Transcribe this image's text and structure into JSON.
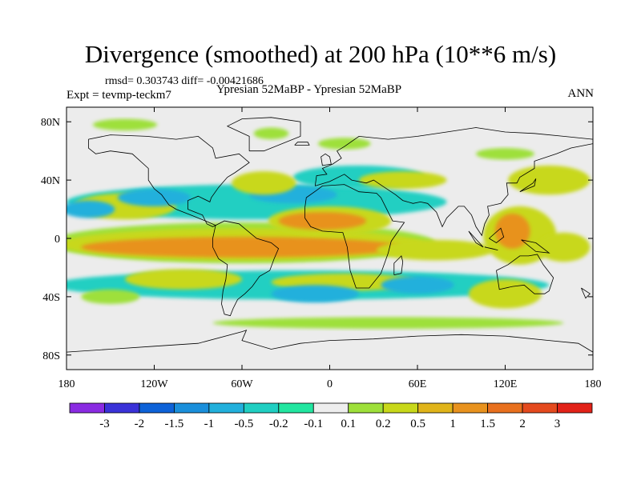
{
  "chart_data": {
    "type": "heatmap",
    "title": "Divergence (smoothed) at 200 hPa (10**6 m/s)",
    "stats": "rmsd= 0.303743 diff= -0.00421686",
    "experiment": "Expt = tevmp-teckm7",
    "case": "Ypresian  52MaBP - Ypresian  52MaBP",
    "season": "ANN",
    "x_ticks": [
      {
        "lon": -180,
        "label": "180"
      },
      {
        "lon": -120,
        "label": "120W"
      },
      {
        "lon": -60,
        "label": "60W"
      },
      {
        "lon": 0,
        "label": "0"
      },
      {
        "lon": 60,
        "label": "60E"
      },
      {
        "lon": 120,
        "label": "120E"
      },
      {
        "lon": 180,
        "label": "180"
      }
    ],
    "y_ticks": [
      {
        "lat": 80,
        "label": "80N"
      },
      {
        "lat": 40,
        "label": "40N"
      },
      {
        "lat": 0,
        "label": "0"
      },
      {
        "lat": -40,
        "label": "40S"
      },
      {
        "lat": -80,
        "label": "80S"
      }
    ],
    "xlim": [
      -180,
      180
    ],
    "ylim": [
      -90,
      90
    ],
    "colorbar": {
      "colors": [
        "#8a2be2",
        "#3a32d8",
        "#0d62d8",
        "#1a8fdb",
        "#22b0dc",
        "#20cfc2",
        "#22e6a0",
        "#eeeeee",
        "#9ee03a",
        "#c8d81a",
        "#e0b41a",
        "#e8921e",
        "#e8701e",
        "#e44a1e",
        "#e22218"
      ],
      "tick_labels": [
        "-3",
        "-2",
        "-1.5",
        "-1",
        "-0.5",
        "-0.2",
        "-0.1",
        "0.1",
        "0.2",
        "0.5",
        "1",
        "1.5",
        "2",
        "3"
      ]
    },
    "regions": [
      {
        "name": "tropical-orange-band",
        "lon": -60,
        "lat": -6,
        "rlon": 110,
        "rlat": 7,
        "level": 1.5
      },
      {
        "name": "tropical-yellow-band",
        "lon": -60,
        "lat": -4,
        "rlon": 125,
        "rlat": 11,
        "level": 0.5
      },
      {
        "name": "tropical-green-band",
        "lon": -60,
        "lat": -3,
        "rlon": 132,
        "rlat": 14,
        "level": 0.2
      },
      {
        "name": "africa-orange",
        "lon": -5,
        "lat": 12,
        "rlon": 30,
        "rlat": 6,
        "level": 1.5
      },
      {
        "name": "africa-yellow",
        "lon": 0,
        "lat": 12,
        "rlon": 42,
        "rlat": 10,
        "level": 0.5
      },
      {
        "name": "indian-ocean-yellow",
        "lon": 72,
        "lat": -8,
        "rlon": 40,
        "rlat": 7,
        "level": 0.5
      },
      {
        "name": "maritime-orange",
        "lon": 125,
        "lat": 5,
        "rlon": 12,
        "rlat": 12,
        "level": 1.5
      },
      {
        "name": "maritime-yellow",
        "lon": 130,
        "lat": 2,
        "rlon": 25,
        "rlat": 20,
        "level": 0.5
      },
      {
        "name": "east-pacific-yellow",
        "lon": 160,
        "lat": -6,
        "rlon": 18,
        "rlat": 10,
        "level": 0.5
      },
      {
        "name": "west-pacific-band",
        "lon": -140,
        "lat": 22,
        "rlon": 35,
        "rlat": 9,
        "level": 0.5
      },
      {
        "name": "north-atlantic-yellow",
        "lon": -45,
        "lat": 38,
        "rlon": 22,
        "rlat": 8,
        "level": 0.5
      },
      {
        "name": "north-africa-yellow",
        "lon": 50,
        "lat": 40,
        "rlon": 30,
        "rlat": 6,
        "level": 0.5
      },
      {
        "name": "north-pacific-yellow",
        "lon": 150,
        "lat": 40,
        "rlon": 28,
        "rlat": 10,
        "level": 0.5
      },
      {
        "name": "south-band-yellow",
        "lon": 10,
        "lat": -30,
        "rlon": 50,
        "rlat": 6,
        "level": 0.5
      },
      {
        "name": "south-pacific-yellow",
        "lon": -100,
        "lat": -28,
        "rlon": 40,
        "rlat": 7,
        "level": 0.5
      },
      {
        "name": "south-indian-yellow",
        "lon": 120,
        "lat": -38,
        "rlon": 25,
        "rlat": 10,
        "level": 0.5
      },
      {
        "name": "subtropical-cyan-north",
        "lon": -50,
        "lat": 25,
        "rlon": 130,
        "rlat": 12,
        "level": -0.2
      },
      {
        "name": "north-cyan-tongue",
        "lon": 20,
        "lat": 42,
        "rlon": 45,
        "rlat": 8,
        "level": -0.2
      },
      {
        "name": "north-blue-patch",
        "lon": -120,
        "lat": 28,
        "rlon": 25,
        "rlat": 6,
        "level": -0.5
      },
      {
        "name": "pacific-blue",
        "lon": -165,
        "lat": 20,
        "rlon": 18,
        "rlat": 6,
        "level": -0.5
      },
      {
        "name": "mid-blue-north",
        "lon": -25,
        "lat": 30,
        "rlon": 30,
        "rlat": 6,
        "level": -0.5
      },
      {
        "name": "southern-cyan-band",
        "lon": -20,
        "lat": -32,
        "rlon": 170,
        "rlat": 10,
        "level": -0.2
      },
      {
        "name": "southern-blue-patch",
        "lon": -10,
        "lat": -38,
        "rlon": 30,
        "rlat": 6,
        "level": -0.5
      },
      {
        "name": "south-indian-blue",
        "lon": 60,
        "lat": -32,
        "rlon": 25,
        "rlat": 6,
        "level": -0.5
      },
      {
        "name": "arctic-green",
        "lon": -140,
        "lat": 78,
        "rlon": 22,
        "rlat": 4,
        "level": 0.2
      },
      {
        "name": "arctic-green-2",
        "lon": -40,
        "lat": 72,
        "rlon": 12,
        "rlat": 4,
        "level": 0.2
      },
      {
        "name": "north-green-atlantic",
        "lon": 10,
        "lat": 65,
        "rlon": 18,
        "rlat": 4,
        "level": 0.2
      },
      {
        "name": "north-green-asia",
        "lon": 120,
        "lat": 58,
        "rlon": 20,
        "rlat": 4,
        "level": 0.2
      },
      {
        "name": "southern-green-band",
        "lon": 40,
        "lat": -58,
        "rlon": 120,
        "rlat": 4,
        "level": 0.2
      },
      {
        "name": "south-pacific-green",
        "lon": -150,
        "lat": -40,
        "rlon": 20,
        "rlat": 5,
        "level": 0.2
      }
    ],
    "coastlines": [
      {
        "name": "north-america",
        "points": [
          [
            -165,
            68
          ],
          [
            -150,
            71
          ],
          [
            -125,
            70
          ],
          [
            -105,
            68
          ],
          [
            -90,
            70
          ],
          [
            -80,
            62
          ],
          [
            -78,
            55
          ],
          [
            -62,
            58
          ],
          [
            -55,
            52
          ],
          [
            -65,
            45
          ],
          [
            -70,
            42
          ],
          [
            -76,
            35
          ],
          [
            -81,
            28
          ],
          [
            -82,
            25
          ],
          [
            -90,
            29
          ],
          [
            -97,
            26
          ],
          [
            -97,
            20
          ],
          [
            -92,
            18
          ],
          [
            -87,
            16
          ],
          [
            -84,
            10
          ],
          [
            -80,
            8
          ],
          [
            -78,
            9
          ],
          [
            -85,
            12
          ],
          [
            -95,
            16
          ],
          [
            -105,
            20
          ],
          [
            -110,
            23
          ],
          [
            -115,
            30
          ],
          [
            -120,
            34
          ],
          [
            -124,
            40
          ],
          [
            -124,
            48
          ],
          [
            -135,
            58
          ],
          [
            -150,
            60
          ],
          [
            -160,
            58
          ],
          [
            -165,
            62
          ],
          [
            -165,
            68
          ]
        ]
      },
      {
        "name": "south-america",
        "points": [
          [
            -78,
            9
          ],
          [
            -72,
            12
          ],
          [
            -62,
            10
          ],
          [
            -50,
            0
          ],
          [
            -40,
            -3
          ],
          [
            -35,
            -7
          ],
          [
            -38,
            -14
          ],
          [
            -41,
            -22
          ],
          [
            -48,
            -26
          ],
          [
            -53,
            -33
          ],
          [
            -58,
            -38
          ],
          [
            -63,
            -42
          ],
          [
            -66,
            -48
          ],
          [
            -68,
            -53
          ],
          [
            -72,
            -52
          ],
          [
            -74,
            -45
          ],
          [
            -73,
            -36
          ],
          [
            -71,
            -28
          ],
          [
            -70,
            -18
          ],
          [
            -76,
            -14
          ],
          [
            -80,
            -6
          ],
          [
            -80,
            0
          ],
          [
            -78,
            9
          ]
        ]
      },
      {
        "name": "africa",
        "points": [
          [
            -17,
            21
          ],
          [
            -16,
            28
          ],
          [
            -9,
            33
          ],
          [
            -5,
            36
          ],
          [
            10,
            37
          ],
          [
            20,
            32
          ],
          [
            32,
            31
          ],
          [
            35,
            28
          ],
          [
            43,
            12
          ],
          [
            51,
            11
          ],
          [
            42,
            -2
          ],
          [
            40,
            -10
          ],
          [
            35,
            -24
          ],
          [
            27,
            -34
          ],
          [
            18,
            -34
          ],
          [
            14,
            -22
          ],
          [
            12,
            -6
          ],
          [
            9,
            4
          ],
          [
            -5,
            5
          ],
          [
            -13,
            8
          ],
          [
            -17,
            14
          ],
          [
            -17,
            21
          ]
        ]
      },
      {
        "name": "eurasia",
        "points": [
          [
            -10,
            36
          ],
          [
            -9,
            43
          ],
          [
            -2,
            44
          ],
          [
            -5,
            48
          ],
          [
            2,
            51
          ],
          [
            8,
            55
          ],
          [
            5,
            60
          ],
          [
            10,
            63
          ],
          [
            20,
            70
          ],
          [
            40,
            68
          ],
          [
            60,
            70
          ],
          [
            80,
            73
          ],
          [
            100,
            76
          ],
          [
            120,
            73
          ],
          [
            140,
            72
          ],
          [
            160,
            70
          ],
          [
            180,
            68
          ]
        ]
      },
      {
        "name": "eurasia-south",
        "points": [
          [
            -10,
            36
          ],
          [
            0,
            39
          ],
          [
            10,
            44
          ],
          [
            15,
            40
          ],
          [
            25,
            38
          ],
          [
            30,
            40
          ],
          [
            36,
            36
          ],
          [
            45,
            30
          ],
          [
            50,
            26
          ],
          [
            57,
            24
          ],
          [
            62,
            25
          ],
          [
            67,
            24
          ],
          [
            73,
            18
          ],
          [
            77,
            8
          ],
          [
            80,
            14
          ],
          [
            88,
            22
          ],
          [
            92,
            22
          ],
          [
            97,
            16
          ],
          [
            100,
            8
          ],
          [
            104,
            2
          ],
          [
            106,
            10
          ],
          [
            109,
            16
          ],
          [
            108,
            22
          ],
          [
            117,
            24
          ],
          [
            122,
            30
          ],
          [
            121,
            38
          ],
          [
            128,
            38
          ],
          [
            130,
            42
          ],
          [
            140,
            48
          ],
          [
            140,
            53
          ],
          [
            155,
            58
          ],
          [
            165,
            62
          ],
          [
            180,
            65
          ]
        ]
      },
      {
        "name": "australia",
        "points": [
          [
            114,
            -22
          ],
          [
            116,
            -35
          ],
          [
            125,
            -33
          ],
          [
            133,
            -32
          ],
          [
            140,
            -38
          ],
          [
            147,
            -38
          ],
          [
            150,
            -36
          ],
          [
            153,
            -27
          ],
          [
            146,
            -18
          ],
          [
            142,
            -11
          ],
          [
            136,
            -12
          ],
          [
            130,
            -12
          ],
          [
            122,
            -18
          ],
          [
            114,
            -22
          ]
        ]
      },
      {
        "name": "antarctica",
        "points": [
          [
            -180,
            -78
          ],
          [
            -150,
            -76
          ],
          [
            -120,
            -74
          ],
          [
            -90,
            -72
          ],
          [
            -60,
            -64
          ],
          [
            -57,
            -63
          ],
          [
            -60,
            -70
          ],
          [
            -40,
            -76
          ],
          [
            -20,
            -72
          ],
          [
            0,
            -70
          ],
          [
            30,
            -69
          ],
          [
            60,
            -67
          ],
          [
            90,
            -66
          ],
          [
            120,
            -67
          ],
          [
            150,
            -70
          ],
          [
            170,
            -72
          ],
          [
            180,
            -78
          ]
        ]
      },
      {
        "name": "greenland",
        "points": [
          [
            -55,
            60
          ],
          [
            -45,
            60
          ],
          [
            -20,
            70
          ],
          [
            -20,
            80
          ],
          [
            -40,
            83
          ],
          [
            -60,
            82
          ],
          [
            -70,
            77
          ],
          [
            -55,
            70
          ],
          [
            -55,
            60
          ]
        ]
      },
      {
        "name": "madagascar",
        "points": [
          [
            44,
            -25
          ],
          [
            49,
            -24
          ],
          [
            50,
            -16
          ],
          [
            49,
            -12
          ],
          [
            44,
            -17
          ],
          [
            44,
            -25
          ]
        ]
      },
      {
        "name": "uk",
        "points": [
          [
            -5,
            50
          ],
          [
            1,
            51
          ],
          [
            0,
            56
          ],
          [
            -3,
            58
          ],
          [
            -6,
            56
          ],
          [
            -5,
            50
          ]
        ]
      },
      {
        "name": "japan",
        "points": [
          [
            130,
            32
          ],
          [
            135,
            34
          ],
          [
            140,
            36
          ],
          [
            141,
            41
          ],
          [
            139,
            38
          ],
          [
            133,
            34
          ],
          [
            130,
            32
          ]
        ]
      },
      {
        "name": "indonesia-1",
        "points": [
          [
            95,
            5
          ],
          [
            105,
            -6
          ],
          [
            100,
            -3
          ],
          [
            95,
            5
          ]
        ]
      },
      {
        "name": "indonesia-2",
        "points": [
          [
            106,
            -6
          ],
          [
            115,
            -8
          ],
          [
            111,
            -7
          ],
          [
            106,
            -6
          ]
        ]
      },
      {
        "name": "borneo",
        "points": [
          [
            109,
            0
          ],
          [
            117,
            7
          ],
          [
            119,
            1
          ],
          [
            114,
            -3
          ],
          [
            109,
            0
          ]
        ]
      },
      {
        "name": "new-guinea",
        "points": [
          [
            131,
            -1
          ],
          [
            141,
            -3
          ],
          [
            150,
            -10
          ],
          [
            141,
            -9
          ],
          [
            131,
            -1
          ]
        ]
      },
      {
        "name": "new-zealand",
        "points": [
          [
            172,
            -34
          ],
          [
            178,
            -38
          ],
          [
            175,
            -41
          ],
          [
            172,
            -34
          ]
        ]
      },
      {
        "name": "iceland",
        "points": [
          [
            -24,
            64
          ],
          [
            -14,
            64
          ],
          [
            -15,
            66
          ],
          [
            -22,
            66
          ],
          [
            -24,
            64
          ]
        ]
      }
    ]
  }
}
